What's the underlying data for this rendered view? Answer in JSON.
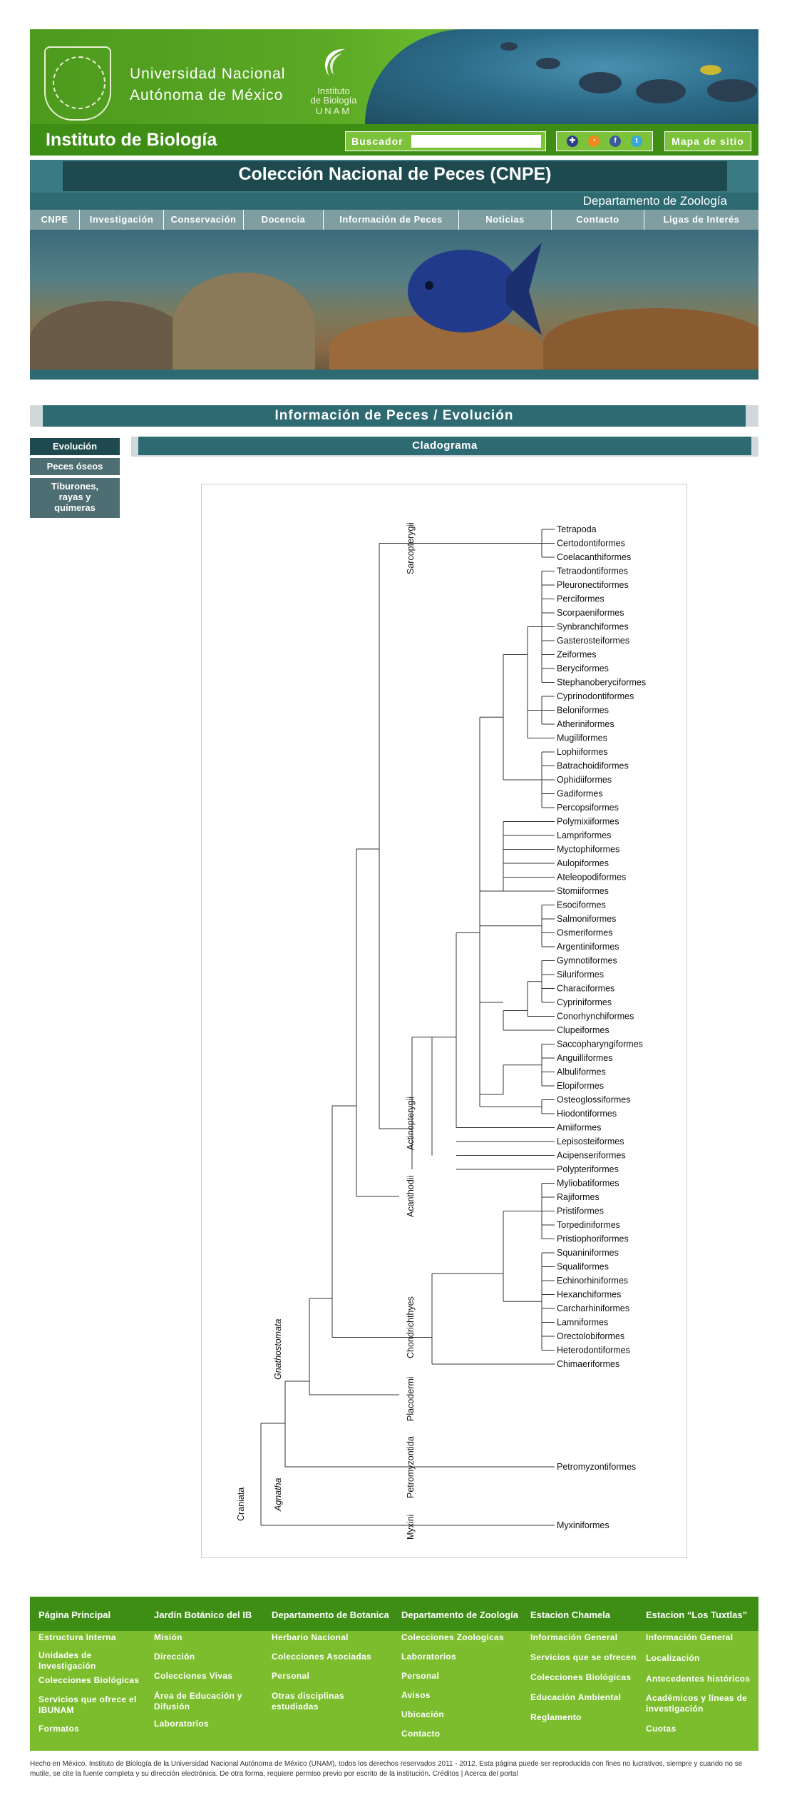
{
  "header": {
    "unam_line1": "Universidad Nacional",
    "unam_line2": "Autónoma de México",
    "ib_logo_line1": "Instituto",
    "ib_logo_line2": "de Biología",
    "ib_logo_line3": "UNAM",
    "institute_title": "Instituto de Biología",
    "search_label": "Buscador",
    "search_value": "",
    "sitemap_label": "Mapa de sitio",
    "social_icons": [
      "uk-flag-icon",
      "rss-icon",
      "facebook-icon",
      "twitter-icon"
    ]
  },
  "site": {
    "title": "Colección Nacional de Peces (CNPE)",
    "department": "Departamento de Zoología"
  },
  "nav": [
    {
      "label": "CNPE"
    },
    {
      "label": "Investigación"
    },
    {
      "label": "Conservación"
    },
    {
      "label": "Docencia"
    },
    {
      "label": "Información de Peces"
    },
    {
      "label": "Noticias"
    },
    {
      "label": "Contacto"
    },
    {
      "label": "Ligas de Interés"
    }
  ],
  "section": {
    "title": "Información de Peces / Evolución",
    "panel_title": "Cladograma"
  },
  "sidebar": [
    {
      "label": "Evolución",
      "active": true
    },
    {
      "label": "Peces óseos",
      "active": false
    },
    {
      "label": "Tiburones, rayas y quimeras",
      "active": false
    }
  ],
  "cladogram": {
    "clade_labels": {
      "sarcopterygii": "Sarcopterygii",
      "actinopterygii": "Actinopterygii",
      "acanthodii": "Acanthodii",
      "chondrichthyes": "Chondrichthyes",
      "placodermi": "Placodermi",
      "petromyzontida": "Petromyzontida",
      "myxini": "Myxini",
      "gnathostomata": "Gnathostomata",
      "agnatha": "Agnatha",
      "craniata": "Craniata"
    },
    "taxa": [
      "Tetrapoda",
      "Certodontiformes",
      "Coelacanthiformes",
      "Tetraodontiformes",
      "Pleuronectiformes",
      "Perciformes",
      "Scorpaeniformes",
      "Synbranchiformes",
      "Gasterosteiformes",
      "Zeiformes",
      "Beryciformes",
      "Stephanoberyciformes",
      "Cyprinodontiformes",
      "Beloniformes",
      "Atheriniformes",
      "Mugiliformes",
      "Lophiiformes",
      "Batrachoidiformes",
      "Ophidiiformes",
      "Gadiformes",
      "Percopsiformes",
      "Polymixiiformes",
      "Lampriformes",
      "Myctophiformes",
      "Aulopiformes",
      "Ateleopodiformes",
      "Stomiiformes",
      "Esociformes",
      "Salmoniformes",
      "Osmeriformes",
      "Argentiniformes",
      "Gymnotiformes",
      "Siluriformes",
      "Characiformes",
      "Cypriniformes",
      "Conorhynchiformes",
      "Clupeiformes",
      "Saccopharyngiformes",
      "Anguilliformes",
      "Albuliformes",
      "Elopiformes",
      "Osteoglossiformes",
      "Hiodontiformes",
      "Amiiformes",
      "Lepisosteiformes",
      "Acipenseriformes",
      "Polypteriformes",
      "Myliobatiformes",
      "Rajiformes",
      "Pristiformes",
      "Torpediniformes",
      "Pristiophoriformes",
      "Squaniniformes",
      "Squaliformes",
      "Echinorhiniformes",
      "Hexanchiformes",
      "Carcharhiniformes",
      "Lamniformes",
      "Orectolobiformes",
      "Heterodontiformes",
      "Chimaeriformes",
      "Petromyzontiformes",
      "Myxiniformes"
    ]
  },
  "footer": {
    "columns": [
      {
        "head": "Página Principal",
        "items": [
          "Estructura Interna",
          "Unidades de Investigación",
          "Colecciones Biológicas",
          "Servicios que ofrece el IBUNAM",
          "Formatos"
        ]
      },
      {
        "head": "Jardín Botánico del IB",
        "items": [
          "Misión",
          "Dirección",
          "Colecciones Vivas",
          "Área de Educación y Difusión",
          "Laboratorios"
        ]
      },
      {
        "head": "Departamento de Botanica",
        "items": [
          "Herbario Nacional",
          "Colecciones Asociadas",
          "Personal",
          "Otras disciplinas estudiadas"
        ]
      },
      {
        "head": "Departamento de Zoología",
        "items": [
          "Colecciones Zoologicas",
          "Laboratorios",
          "Personal",
          "Avisos",
          "Ubicación",
          "Contacto"
        ]
      },
      {
        "head": "Estacion Chamela",
        "items": [
          "Información General",
          "Servicios que se ofrecen",
          "Colecciones Biológicas",
          "Educación Ambiental",
          "Reglamento"
        ]
      },
      {
        "head": "Estacion “Los Tuxtlas”",
        "items": [
          "Información General",
          "Localización",
          "Antecedentes históricos",
          "Académicos y líneas de investigación",
          "Cuotas"
        ]
      }
    ],
    "legal": "Hecho en México, Instituto de Biología de la Universidad Nacional Autónoma de México (UNAM), todos los derechos reservados 2011 - 2012. Esta página puede ser reproducida con fines no lucrativos, siempre y cuando no se mutile, se cite la fuente completa y su dirección electrónica. De otra forma, requiere permiso previo por escrito de la institución. Créditos | Acerca del portal"
  }
}
